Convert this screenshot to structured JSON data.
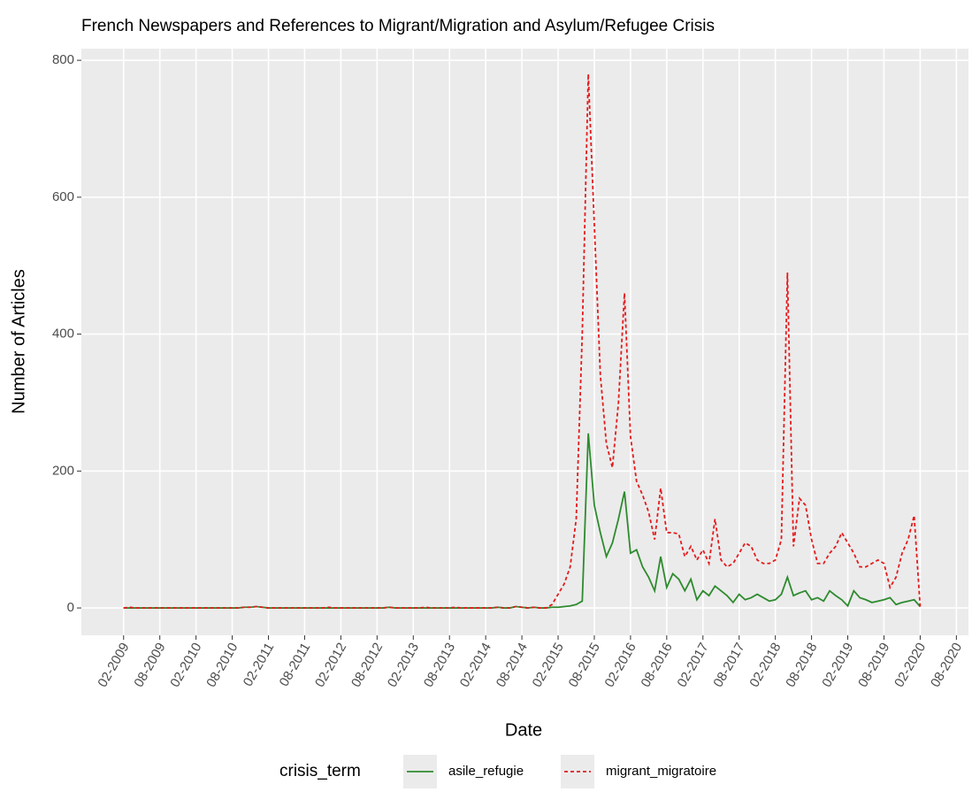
{
  "chart_data": {
    "type": "line",
    "title": "French Newspapers and References to Migrant/Migration and Asylum/Refugee Crisis",
    "xlabel": "Date",
    "ylabel": "Number of Articles",
    "legend_title": "crisis_term",
    "legend_position": "bottom",
    "grid": true,
    "xlim": [
      "07-2008",
      "10-2020"
    ],
    "ylim": [
      -40,
      817
    ],
    "yticks": [
      0,
      200,
      400,
      600,
      800
    ],
    "xticks": [
      "02-2009",
      "08-2009",
      "02-2010",
      "08-2010",
      "02-2011",
      "08-2011",
      "02-2012",
      "08-2012",
      "02-2013",
      "08-2013",
      "02-2014",
      "08-2014",
      "02-2015",
      "08-2015",
      "02-2016",
      "08-2016",
      "02-2017",
      "08-2017",
      "02-2018",
      "08-2018",
      "02-2019",
      "08-2019",
      "02-2020",
      "08-2020"
    ],
    "x": [
      "02-2009",
      "03-2009",
      "04-2009",
      "05-2009",
      "06-2009",
      "07-2009",
      "08-2009",
      "09-2009",
      "10-2009",
      "11-2009",
      "12-2009",
      "01-2010",
      "02-2010",
      "03-2010",
      "04-2010",
      "05-2010",
      "06-2010",
      "07-2010",
      "08-2010",
      "09-2010",
      "10-2010",
      "11-2010",
      "12-2010",
      "01-2011",
      "02-2011",
      "03-2011",
      "04-2011",
      "05-2011",
      "06-2011",
      "07-2011",
      "08-2011",
      "09-2011",
      "10-2011",
      "11-2011",
      "12-2011",
      "01-2012",
      "02-2012",
      "03-2012",
      "04-2012",
      "05-2012",
      "06-2012",
      "07-2012",
      "08-2012",
      "09-2012",
      "10-2012",
      "11-2012",
      "12-2012",
      "01-2013",
      "02-2013",
      "03-2013",
      "04-2013",
      "05-2013",
      "06-2013",
      "07-2013",
      "08-2013",
      "09-2013",
      "10-2013",
      "11-2013",
      "12-2013",
      "01-2014",
      "02-2014",
      "03-2014",
      "04-2014",
      "05-2014",
      "06-2014",
      "07-2014",
      "08-2014",
      "09-2014",
      "10-2014",
      "11-2014",
      "12-2014",
      "01-2015",
      "02-2015",
      "03-2015",
      "04-2015",
      "05-2015",
      "06-2015",
      "07-2015",
      "08-2015",
      "09-2015",
      "10-2015",
      "11-2015",
      "12-2015",
      "01-2016",
      "02-2016",
      "03-2016",
      "04-2016",
      "05-2016",
      "06-2016",
      "07-2016",
      "08-2016",
      "09-2016",
      "10-2016",
      "11-2016",
      "12-2016",
      "01-2017",
      "02-2017",
      "03-2017",
      "04-2017",
      "05-2017",
      "06-2017",
      "07-2017",
      "08-2017",
      "09-2017",
      "10-2017",
      "11-2017",
      "12-2017",
      "01-2018",
      "02-2018",
      "03-2018",
      "04-2018",
      "05-2018",
      "06-2018",
      "07-2018",
      "08-2018",
      "09-2018",
      "10-2018",
      "11-2018",
      "12-2018",
      "01-2019",
      "02-2019",
      "03-2019",
      "04-2019",
      "05-2019",
      "06-2019",
      "07-2019",
      "08-2019",
      "09-2019",
      "10-2019",
      "11-2019",
      "12-2019",
      "01-2020",
      "02-2020"
    ],
    "series": [
      {
        "name": "asile_refugie",
        "color": "#2e8b2e",
        "linetype": "solid",
        "values": [
          0,
          0,
          0,
          0,
          0,
          0,
          0,
          0,
          0,
          0,
          0,
          0,
          0,
          0,
          0,
          0,
          0,
          0,
          0,
          0,
          1,
          1,
          2,
          1,
          0,
          0,
          0,
          0,
          0,
          0,
          0,
          0,
          0,
          0,
          0,
          0,
          0,
          0,
          0,
          0,
          0,
          0,
          0,
          0,
          1,
          0,
          0,
          0,
          0,
          0,
          0,
          0,
          0,
          0,
          0,
          0,
          0,
          0,
          0,
          0,
          0,
          0,
          1,
          0,
          0,
          2,
          1,
          0,
          1,
          0,
          0,
          1,
          1,
          2,
          3,
          5,
          10,
          255,
          150,
          110,
          75,
          95,
          130,
          170,
          80,
          85,
          60,
          45,
          25,
          75,
          30,
          50,
          42,
          25,
          42,
          12,
          25,
          18,
          32,
          25,
          18,
          8,
          20,
          12,
          15,
          20,
          15,
          10,
          12,
          20,
          45,
          18,
          22,
          25,
          12,
          15,
          10,
          25,
          18,
          12,
          3,
          25,
          15,
          12,
          8,
          10,
          12,
          15,
          5,
          8,
          10,
          12,
          2
        ]
      },
      {
        "name": "migrant_migratoire",
        "color": "#e41a1c",
        "linetype": "dashed",
        "values": [
          0,
          1,
          0,
          0,
          0,
          0,
          0,
          0,
          0,
          0,
          0,
          0,
          0,
          0,
          0,
          0,
          0,
          0,
          0,
          0,
          1,
          1,
          2,
          1,
          0,
          0,
          0,
          0,
          0,
          0,
          0,
          0,
          0,
          0,
          1,
          0,
          0,
          0,
          0,
          0,
          0,
          0,
          0,
          0,
          1,
          0,
          0,
          0,
          0,
          0,
          1,
          0,
          0,
          0,
          0,
          1,
          0,
          0,
          0,
          0,
          0,
          0,
          1,
          0,
          0,
          2,
          1,
          0,
          1,
          0,
          0,
          5,
          20,
          35,
          60,
          130,
          400,
          780,
          560,
          340,
          240,
          205,
          300,
          460,
          250,
          185,
          165,
          140,
          100,
          175,
          110,
          110,
          108,
          75,
          90,
          70,
          85,
          65,
          130,
          70,
          60,
          65,
          80,
          95,
          90,
          70,
          65,
          65,
          70,
          100,
          490,
          90,
          160,
          150,
          100,
          65,
          65,
          80,
          90,
          110,
          95,
          80,
          60,
          60,
          65,
          70,
          65,
          30,
          45,
          80,
          100,
          135,
          2
        ]
      }
    ]
  }
}
